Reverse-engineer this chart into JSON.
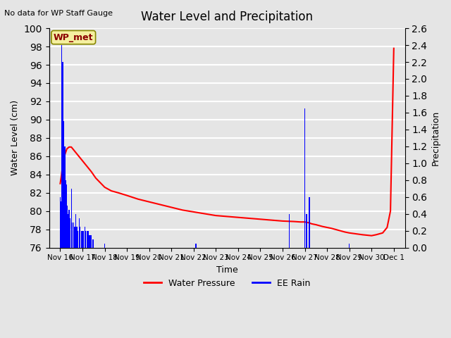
{
  "title": "Water Level and Precipitation",
  "top_left_text": "No data for WP Staff Gauge",
  "xlabel": "Time",
  "ylabel_left": "Water Level (cm)",
  "ylabel_right": "Precipitation",
  "legend_entries": [
    "Water Pressure",
    "EE Rain"
  ],
  "wp_met_label": "WP_met",
  "ylim_left": [
    76,
    100
  ],
  "ylim_right": [
    0.0,
    2.6
  ],
  "yticks_left": [
    76,
    78,
    80,
    82,
    84,
    86,
    88,
    90,
    92,
    94,
    96,
    98,
    100
  ],
  "yticks_right": [
    0.0,
    0.2,
    0.4,
    0.6,
    0.8,
    1.0,
    1.2,
    1.4,
    1.6,
    1.8,
    2.0,
    2.2,
    2.4,
    2.6
  ],
  "background_color": "#e5e5e5",
  "plot_bg_color": "#e5e5e5",
  "grid_color": "white",
  "xticklabels": [
    "Nov 16",
    "Nov 17",
    "Nov 18",
    "Nov 19",
    "Nov 20",
    "Nov 21",
    "Nov 22",
    "Nov 23",
    "Nov 24",
    "Nov 25",
    "Nov 26",
    "Nov 27",
    "Nov 28",
    "Nov 29",
    "Nov 30",
    "Dec 1"
  ],
  "xtick_positions": [
    0,
    1,
    2,
    3,
    4,
    5,
    6,
    7,
    8,
    9,
    10,
    11,
    12,
    13,
    14,
    15
  ],
  "xlim": [
    -0.5,
    15.5
  ],
  "water_pressure_x": [
    0.0,
    0.05,
    0.1,
    0.15,
    0.2,
    0.3,
    0.4,
    0.5,
    0.6,
    0.7,
    0.8,
    0.9,
    1.0,
    1.1,
    1.2,
    1.4,
    1.6,
    1.8,
    2.0,
    2.3,
    2.6,
    3.0,
    3.5,
    4.0,
    4.5,
    5.0,
    5.5,
    6.0,
    6.5,
    7.0,
    7.5,
    8.0,
    8.5,
    9.0,
    9.5,
    10.0,
    10.5,
    10.8,
    11.0,
    11.1,
    11.2,
    11.3,
    11.5,
    11.8,
    12.0,
    12.2,
    12.5,
    12.8,
    13.0,
    13.3,
    13.6,
    13.8,
    14.0,
    14.2,
    14.5,
    14.7,
    14.85,
    15.0
  ],
  "water_pressure_y": [
    83.0,
    83.8,
    84.8,
    85.5,
    86.1,
    86.8,
    87.0,
    87.0,
    86.7,
    86.4,
    86.1,
    85.8,
    85.5,
    85.2,
    84.9,
    84.3,
    83.6,
    83.1,
    82.6,
    82.2,
    82.0,
    81.7,
    81.3,
    81.0,
    80.7,
    80.4,
    80.1,
    79.9,
    79.7,
    79.5,
    79.4,
    79.3,
    79.2,
    79.1,
    79.0,
    78.9,
    78.85,
    78.8,
    78.8,
    78.75,
    78.7,
    78.6,
    78.5,
    78.3,
    78.2,
    78.1,
    77.9,
    77.7,
    77.6,
    77.5,
    77.4,
    77.35,
    77.3,
    77.4,
    77.6,
    78.2,
    80.0,
    97.8
  ],
  "rain_bars_x": [
    0.0,
    0.05,
    0.07,
    0.09,
    0.11,
    0.13,
    0.15,
    0.17,
    0.19,
    0.21,
    0.23,
    0.25,
    0.27,
    0.3,
    0.35,
    0.4,
    0.45,
    0.5,
    0.55,
    0.6,
    0.65,
    0.7,
    0.75,
    0.8,
    0.85,
    0.9,
    0.95,
    1.0,
    1.05,
    1.1,
    1.15,
    1.2,
    1.25,
    1.3,
    1.35,
    1.4,
    1.45,
    1.5,
    2.0,
    6.1,
    10.3,
    11.0,
    11.05,
    11.1,
    11.2,
    13.0
  ],
  "rain_bars_h": [
    0.6,
    0.55,
    2.4,
    1.8,
    2.2,
    2.0,
    1.5,
    1.3,
    1.1,
    1.2,
    0.9,
    0.8,
    0.75,
    0.5,
    0.4,
    0.45,
    0.35,
    0.7,
    0.3,
    0.3,
    0.25,
    0.4,
    0.25,
    0.2,
    0.35,
    0.25,
    0.2,
    0.2,
    0.2,
    0.25,
    0.2,
    0.2,
    0.2,
    0.15,
    0.15,
    0.15,
    0.1,
    0.1,
    0.05,
    0.05,
    0.4,
    1.65,
    0.4,
    0.4,
    0.6,
    0.05
  ]
}
